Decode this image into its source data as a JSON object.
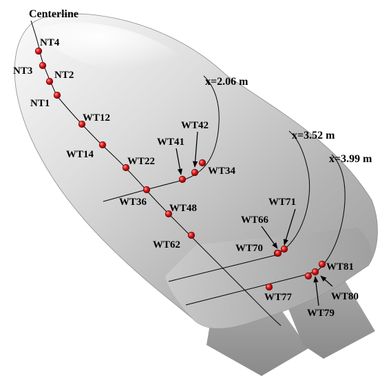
{
  "title": "Centerline",
  "stations": [
    {
      "id": "x206",
      "label": "x=2.06 m"
    },
    {
      "id": "x352",
      "label": "x=3.52 m"
    },
    {
      "id": "x399",
      "label": "x=3.99 m"
    }
  ],
  "points": [
    {
      "id": "NT4",
      "label": "NT4"
    },
    {
      "id": "NT3",
      "label": "NT3"
    },
    {
      "id": "NT2",
      "label": "NT2"
    },
    {
      "id": "NT1",
      "label": "NT1"
    },
    {
      "id": "WT12",
      "label": "WT12"
    },
    {
      "id": "WT14",
      "label": "WT14"
    },
    {
      "id": "WT22",
      "label": "WT22"
    },
    {
      "id": "WT41",
      "label": "WT41"
    },
    {
      "id": "WT42",
      "label": "WT42"
    },
    {
      "id": "WT34",
      "label": "WT34"
    },
    {
      "id": "WT36",
      "label": "WT36"
    },
    {
      "id": "WT48",
      "label": "WT48"
    },
    {
      "id": "WT62",
      "label": "WT62"
    },
    {
      "id": "WT66",
      "label": "WT66"
    },
    {
      "id": "WT71",
      "label": "WT71"
    },
    {
      "id": "WT70",
      "label": "WT70"
    },
    {
      "id": "WT81",
      "label": "WT81"
    },
    {
      "id": "WT77",
      "label": "WT77"
    },
    {
      "id": "WT80",
      "label": "WT80"
    },
    {
      "id": "WT79",
      "label": "WT79"
    }
  ],
  "colors": {
    "body_light": "#f2f2f2",
    "body_mid": "#b9b9b9",
    "body_dark": "#8f8f8f",
    "flap": "#9a9a9a",
    "marker": "#d01818",
    "line": "#000000"
  }
}
